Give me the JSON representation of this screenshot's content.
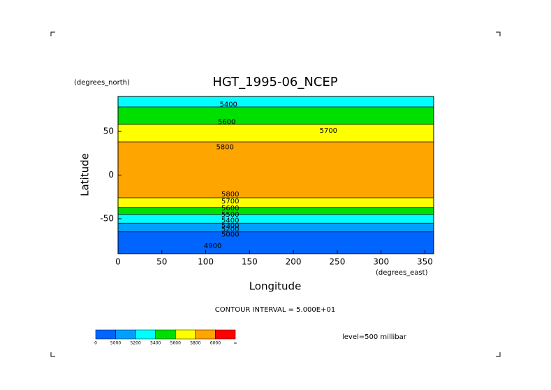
{
  "chart_data": {
    "type": "contour",
    "title": "HGT_1995-06_NCEP",
    "y_unit": "(degrees_north)",
    "x_unit": "(degrees_east)",
    "ylabel": "Latitude",
    "xlabel": "Longitude",
    "xlim": [
      0,
      360
    ],
    "ylim": [
      -90,
      90
    ],
    "xticks": [
      0,
      50,
      100,
      150,
      200,
      250,
      300,
      350
    ],
    "yticks": [
      -50,
      0,
      50
    ],
    "contour_interval": "CONTOUR INTERVAL = 5.000E+01",
    "level": "level=500 millibar",
    "colorbar": {
      "levels": [
        0,
        5000,
        5200,
        5400,
        5600,
        5800,
        6000
      ],
      "colors": [
        "#0064ff",
        "#00a0ff",
        "#00ffff",
        "#00e000",
        "#ffff00",
        "#ffa500",
        "#ff0000"
      ],
      "end_label": "∞"
    },
    "bands": [
      {
        "south": 78,
        "north": 90,
        "level": 5200
      },
      {
        "south": 58,
        "north": 78,
        "level": 5400
      },
      {
        "south": 38,
        "north": 58,
        "level": 5600
      },
      {
        "south": -26,
        "north": 38,
        "level": 5800
      },
      {
        "south": -37,
        "north": -26,
        "level": 5600
      },
      {
        "south": -45,
        "north": -37,
        "level": 5400
      },
      {
        "south": -55,
        "north": -45,
        "level": 5200
      },
      {
        "south": -65,
        "north": -55,
        "level": 5000
      },
      {
        "south": -90,
        "north": -65,
        "level": 0
      }
    ],
    "contour_labels": [
      {
        "value": 5400,
        "lon": 126,
        "lat": 81
      },
      {
        "value": 5600,
        "lon": 124,
        "lat": 61
      },
      {
        "value": 5800,
        "lon": 122,
        "lat": 32
      },
      {
        "value": 5700,
        "lon": 240,
        "lat": 51
      },
      {
        "value": 5800,
        "lon": 128,
        "lat": -22
      },
      {
        "value": 5700,
        "lon": 128,
        "lat": -30
      },
      {
        "value": 5600,
        "lon": 128,
        "lat": -38
      },
      {
        "value": 5500,
        "lon": 128,
        "lat": -45
      },
      {
        "value": 5400,
        "lon": 128,
        "lat": -52
      },
      {
        "value": 5300,
        "lon": 128,
        "lat": -58
      },
      {
        "value": 5200,
        "lon": 128,
        "lat": -62
      },
      {
        "value": 5000,
        "lon": 128,
        "lat": -68
      },
      {
        "value": 4900,
        "lon": 108,
        "lat": -81
      }
    ]
  }
}
